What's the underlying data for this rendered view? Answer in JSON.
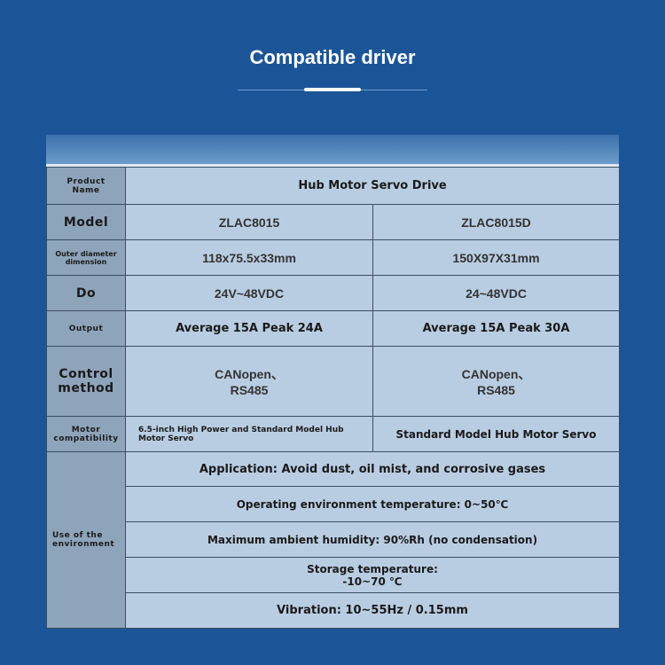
{
  "title": "Compatible driver",
  "rows": {
    "product_name": {
      "label": "Product Name",
      "value": "Hub Motor Servo Drive"
    },
    "model": {
      "label": "Model",
      "a": "ZLAC8015",
      "b": "ZLAC8015D"
    },
    "dimension": {
      "label": "Outer diameter dimension",
      "a": "118x75.5x33mm",
      "b": "150X97X31mm"
    },
    "voltage": {
      "label": "Do",
      "a": "24V~48VDC",
      "b": "24~48VDC"
    },
    "output": {
      "label": "Output",
      "a": "Average 15A Peak 24A",
      "b": "Average 15A Peak 30A"
    },
    "control": {
      "label": "Control method",
      "a": "CANopen、RS485",
      "b": "CANopen、RS485"
    },
    "motor": {
      "label": "Motor compatibility",
      "a": "6.5-inch High Power and Standard Model Hub Motor Servo",
      "b": "Standard Model Hub Motor Servo"
    },
    "environment": {
      "label": "Use of the environment",
      "items": [
        "Application: Avoid dust, oil mist, and corrosive gases",
        "Operating environment temperature: 0~50℃",
        "Maximum ambient humidity: 90%Rh (no condensation)",
        "Storage temperature: -10~70 ℃",
        "Vibration: 10~55Hz / 0.15mm"
      ]
    }
  }
}
